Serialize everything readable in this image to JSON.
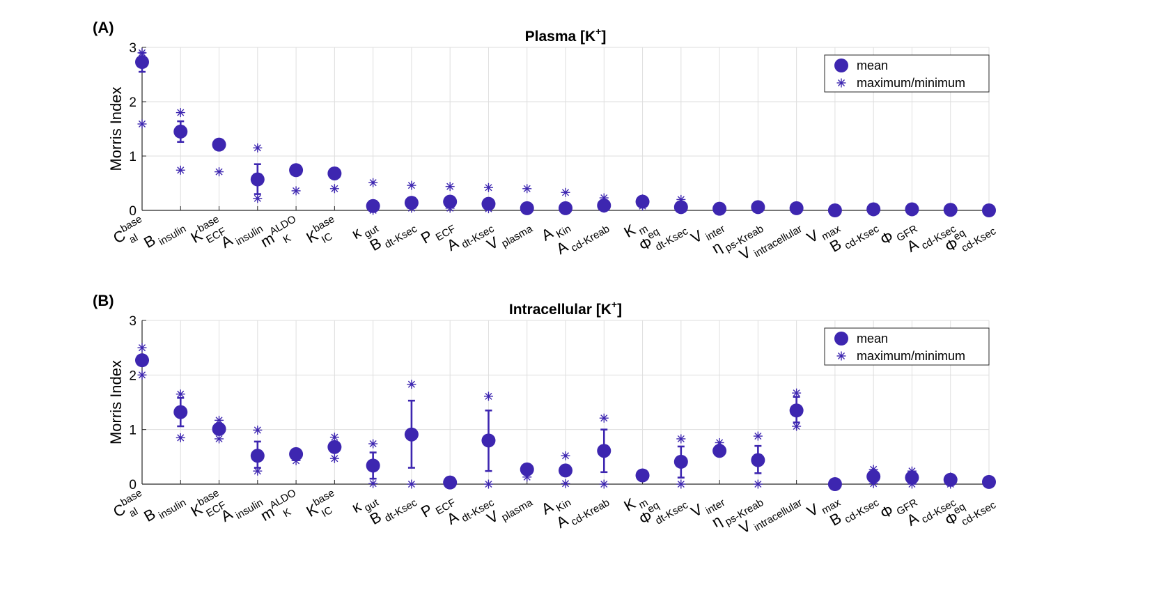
{
  "chart_data": [
    {
      "type": "scatter",
      "panel_label": "(A)",
      "title": "Plasma [K",
      "title_sup": "+",
      "title_end": "]",
      "ylabel": "Morris Index",
      "ylim": [
        0,
        3
      ],
      "yticks": [
        "0",
        "1",
        "2",
        "3"
      ],
      "grid": true,
      "legend_position": "top-right",
      "legend": [
        "mean",
        "maximum/minimum"
      ],
      "color": "#3d26b0",
      "categories": [
        {
          "base": "C",
          "sup": "base",
          "sub": "al"
        },
        {
          "base": "B",
          "sup": "",
          "sub": "insulin"
        },
        {
          "base": "K",
          "sup": "base",
          "sub": "ECF"
        },
        {
          "base": "A",
          "sup": "",
          "sub": "insulin"
        },
        {
          "base": "m",
          "sup": "ALDO",
          "sub": "K"
        },
        {
          "base": "K",
          "sup": "base",
          "sub": "IC"
        },
        {
          "base": "κ",
          "sup": "",
          "sub": "gut"
        },
        {
          "base": "B",
          "sup": "",
          "sub": "dt-Ksec"
        },
        {
          "base": "P",
          "sup": "",
          "sub": "ECF"
        },
        {
          "base": "A",
          "sup": "",
          "sub": "dt-Ksec"
        },
        {
          "base": "V",
          "sup": "",
          "sub": "plasma"
        },
        {
          "base": "A",
          "sup": "",
          "sub": "Kin"
        },
        {
          "base": "A",
          "sup": "",
          "sub": "cd-Kreab"
        },
        {
          "base": "K",
          "sup": "",
          "sub": "m"
        },
        {
          "base": "Φ",
          "sup": "eq",
          "sub": "dt-Ksec"
        },
        {
          "base": "V",
          "sup": "",
          "sub": "inter"
        },
        {
          "base": "η",
          "sup": "",
          "sub": "ps-Kreab"
        },
        {
          "base": "V",
          "sup": "",
          "sub": "intracellular"
        },
        {
          "base": "V",
          "sup": "",
          "sub": "max"
        },
        {
          "base": "B",
          "sup": "",
          "sub": "cd-Ksec"
        },
        {
          "base": "Φ",
          "sup": "",
          "sub": "GFR"
        },
        {
          "base": "A",
          "sup": "",
          "sub": "cd-Ksec"
        },
        {
          "base": "Φ",
          "sup": "eq",
          "sub": "cd-Ksec"
        }
      ],
      "mean": [
        2.73,
        1.45,
        1.21,
        0.57,
        0.74,
        0.68,
        0.08,
        0.14,
        0.16,
        0.12,
        0.04,
        0.04,
        0.09,
        0.16,
        0.06,
        0.03,
        0.06,
        0.04,
        0.0,
        0.02,
        0.02,
        0.01,
        0.0
      ],
      "err_low": [
        2.55,
        1.26,
        1.21,
        0.3,
        0.74,
        0.68,
        0.08,
        0.14,
        0.16,
        0.12,
        0.04,
        0.04,
        0.09,
        0.16,
        0.06,
        0.03,
        0.06,
        0.04,
        0.0,
        0.02,
        0.02,
        0.01,
        0.0
      ],
      "err_high": [
        2.9,
        1.64,
        1.21,
        0.85,
        0.74,
        0.68,
        0.08,
        0.14,
        0.16,
        0.12,
        0.04,
        0.04,
        0.09,
        0.16,
        0.06,
        0.03,
        0.06,
        0.04,
        0.0,
        0.02,
        0.02,
        0.01,
        0.0
      ],
      "maximum": [
        2.9,
        1.8,
        1.21,
        1.15,
        0.74,
        0.68,
        0.51,
        0.46,
        0.44,
        0.42,
        0.4,
        0.33,
        0.23,
        0.21,
        0.2,
        0.06,
        0.07,
        0.05,
        0.0,
        0.02,
        0.02,
        0.01,
        0.0
      ],
      "minimum": [
        1.59,
        0.74,
        0.71,
        0.22,
        0.36,
        0.4,
        0.0,
        0.04,
        0.04,
        0.03,
        0.04,
        0.04,
        0.04,
        0.08,
        0.03,
        0.03,
        0.06,
        0.04,
        0.0,
        0.02,
        0.02,
        0.01,
        0.0
      ]
    },
    {
      "type": "scatter",
      "panel_label": "(B)",
      "title": "Intracellular [K",
      "title_sup": "+",
      "title_end": "]",
      "ylabel": "Morris Index",
      "ylim": [
        0,
        3
      ],
      "yticks": [
        "0",
        "1",
        "2",
        "3"
      ],
      "grid": true,
      "legend_position": "top-right",
      "legend": [
        "mean",
        "maximum/minimum"
      ],
      "color": "#3d26b0",
      "categories": [
        {
          "base": "C",
          "sup": "base",
          "sub": "al"
        },
        {
          "base": "B",
          "sup": "",
          "sub": "insulin"
        },
        {
          "base": "K",
          "sup": "base",
          "sub": "ECF"
        },
        {
          "base": "A",
          "sup": "",
          "sub": "insulin"
        },
        {
          "base": "m",
          "sup": "ALDO",
          "sub": "K"
        },
        {
          "base": "K",
          "sup": "base",
          "sub": "IC"
        },
        {
          "base": "κ",
          "sup": "",
          "sub": "gut"
        },
        {
          "base": "B",
          "sup": "",
          "sub": "dt-Ksec"
        },
        {
          "base": "P",
          "sup": "",
          "sub": "ECF"
        },
        {
          "base": "A",
          "sup": "",
          "sub": "dt-Ksec"
        },
        {
          "base": "V",
          "sup": "",
          "sub": "plasma"
        },
        {
          "base": "A",
          "sup": "",
          "sub": "Kin"
        },
        {
          "base": "A",
          "sup": "",
          "sub": "cd-Kreab"
        },
        {
          "base": "K",
          "sup": "",
          "sub": "m"
        },
        {
          "base": "Φ",
          "sup": "eq",
          "sub": "dt-Ksec"
        },
        {
          "base": "V",
          "sup": "",
          "sub": "inter"
        },
        {
          "base": "η",
          "sup": "",
          "sub": "ps-Kreab"
        },
        {
          "base": "V",
          "sup": "",
          "sub": "intracellular"
        },
        {
          "base": "V",
          "sup": "",
          "sub": "max"
        },
        {
          "base": "B",
          "sup": "",
          "sub": "cd-Ksec"
        },
        {
          "base": "Φ",
          "sup": "",
          "sub": "GFR"
        },
        {
          "base": "A",
          "sup": "",
          "sub": "cd-Ksec"
        },
        {
          "base": "Φ",
          "sup": "eq",
          "sub": "cd-Ksec"
        }
      ],
      "mean": [
        2.27,
        1.32,
        1.01,
        0.52,
        0.55,
        0.68,
        0.34,
        0.91,
        0.03,
        0.8,
        0.27,
        0.25,
        0.61,
        0.16,
        0.41,
        0.61,
        0.44,
        1.35,
        0.0,
        0.14,
        0.12,
        0.08,
        0.04
      ],
      "err_low": [
        2.27,
        1.06,
        1.01,
        0.3,
        0.55,
        0.68,
        0.1,
        0.3,
        0.03,
        0.24,
        0.27,
        0.25,
        0.22,
        0.16,
        0.12,
        0.61,
        0.2,
        1.13,
        0.0,
        0.14,
        0.12,
        0.08,
        0.04
      ],
      "err_high": [
        2.27,
        1.58,
        1.01,
        0.78,
        0.55,
        0.68,
        0.58,
        1.53,
        0.03,
        1.35,
        0.27,
        0.25,
        1.0,
        0.16,
        0.69,
        0.61,
        0.7,
        1.6,
        0.0,
        0.14,
        0.12,
        0.08,
        0.04
      ],
      "maximum": [
        2.5,
        1.65,
        1.17,
        0.99,
        0.55,
        0.86,
        0.74,
        1.83,
        0.03,
        1.61,
        0.27,
        0.52,
        1.21,
        0.16,
        0.83,
        0.76,
        0.88,
        1.67,
        0.0,
        0.27,
        0.24,
        0.13,
        0.04
      ],
      "minimum": [
        2.0,
        0.85,
        0.83,
        0.24,
        0.43,
        0.47,
        0.01,
        0.0,
        0.03,
        0.0,
        0.13,
        0.01,
        0.0,
        0.16,
        0.0,
        0.61,
        0.0,
        1.06,
        0.0,
        0.01,
        0.0,
        0.0,
        0.04
      ]
    }
  ]
}
